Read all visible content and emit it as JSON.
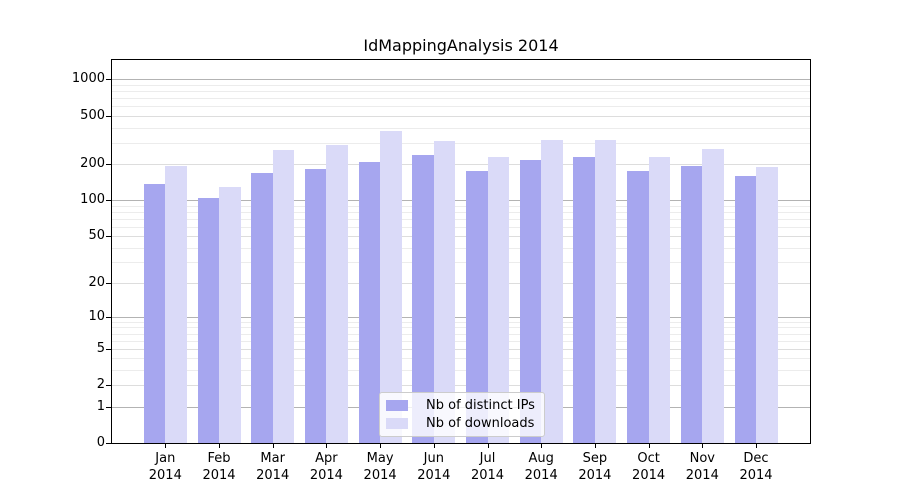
{
  "chart_data": {
    "type": "bar",
    "title": "IdMappingAnalysis 2014",
    "categories": [
      "Jan",
      "Feb",
      "Mar",
      "Apr",
      "May",
      "Jun",
      "Jul",
      "Aug",
      "Sep",
      "Oct",
      "Nov",
      "Dec"
    ],
    "x_sublabel": "2014",
    "series": [
      {
        "name": "Nb of distinct IPs",
        "color": "#a6a6ef",
        "values": [
          137,
          105,
          169,
          183,
          209,
          235,
          175,
          215,
          228,
          175,
          192,
          158
        ]
      },
      {
        "name": "Nb of downloads",
        "color": "#dadaf8",
        "values": [
          191,
          129,
          259,
          285,
          372,
          307,
          227,
          315,
          315,
          230,
          267,
          190
        ]
      }
    ],
    "y_scale": "log10(1+v)",
    "y_ticks": [
      0,
      1,
      2,
      5,
      10,
      20,
      50,
      100,
      200,
      500,
      1000
    ],
    "ylim": [
      0,
      1450
    ],
    "xlabel": "",
    "ylabel": "",
    "legend_position": "bottom-center",
    "grid": "horizontal"
  },
  "colors": {
    "bar_dark": "#a6a6ef",
    "bar_light": "#dadaf8",
    "grid_major": "#b3b3b3",
    "grid_mid": "#dddddd",
    "grid_minor": "#ececec",
    "spine": "#000000",
    "background": "#ffffff"
  }
}
